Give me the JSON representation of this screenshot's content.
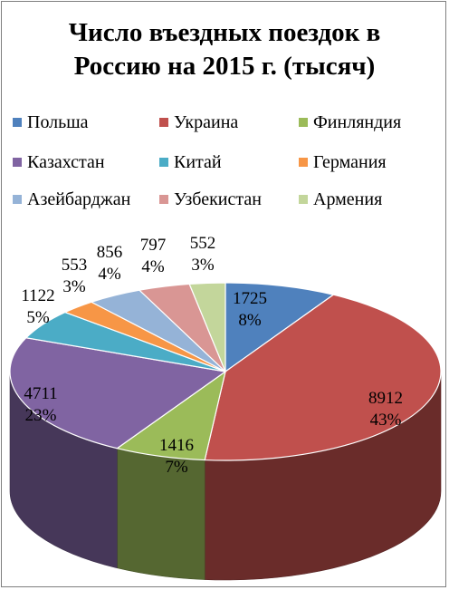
{
  "chart_data": {
    "type": "pie",
    "title": "Число въездных поездок в Россию на 2015 г. (тысяч)",
    "title_lines": [
      "Число въездных поездок в",
      "Россию на 2015 г. (тысяч)"
    ],
    "legend_position": "top",
    "series": [
      {
        "name": "Польша",
        "value": 1725,
        "percent_label": "8%",
        "color": "#4f81bd"
      },
      {
        "name": "Украина",
        "value": 8912,
        "percent_label": "43%",
        "color": "#c0504d"
      },
      {
        "name": "Финляндия",
        "value": 1416,
        "percent_label": "7%",
        "color": "#9bbb59"
      },
      {
        "name": "Казахстан",
        "value": 4711,
        "percent_label": "23%",
        "color": "#8064a2"
      },
      {
        "name": "Китай",
        "value": 1122,
        "percent_label": "5%",
        "color": "#4bacc6"
      },
      {
        "name": "Германия",
        "value": 553,
        "percent_label": "3%",
        "color": "#f79646"
      },
      {
        "name": "Азейбарджан",
        "value": 856,
        "percent_label": "4%",
        "color": "#95b3d7"
      },
      {
        "name": "Узбекистан",
        "value": 797,
        "percent_label": "4%",
        "color": "#d99694"
      },
      {
        "name": "Армения",
        "value": 552,
        "percent_label": "3%",
        "color": "#c3d69b"
      }
    ]
  }
}
